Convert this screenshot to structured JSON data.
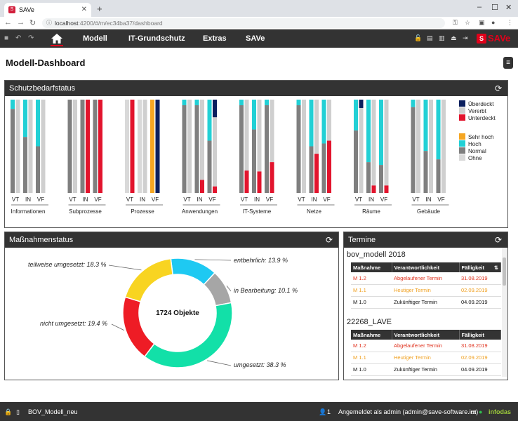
{
  "browser": {
    "tab_title": "SAVe",
    "url_host": "localhost",
    "url_rest": ":4200/#/m/ec34ba37/dashboard"
  },
  "nav": {
    "items": [
      "Modell",
      "IT-Grundschutz",
      "Extras",
      "SAVe"
    ],
    "brand": "SAVe"
  },
  "page": {
    "title": "Modell-Dashboard"
  },
  "schutzbedarf": {
    "title": "Schutzbedarfstatus",
    "columns": [
      "VT",
      "IN",
      "VF"
    ],
    "legend_status": [
      {
        "label": "Überdeckt",
        "color": "#0b1f5e"
      },
      {
        "label": "Vererbt",
        "color": "#cfcfcf"
      },
      {
        "label": "Unterdeckt",
        "color": "#e2142d"
      }
    ],
    "legend_level": [
      {
        "label": "Sehr hoch",
        "color": "#f5a623"
      },
      {
        "label": "Hoch",
        "color": "#22d0d5"
      },
      {
        "label": "Normal",
        "color": "#7f7f7f"
      },
      {
        "label": "Ohne",
        "color": "#d9d9d9"
      }
    ]
  },
  "chart_data": {
    "type": "bar",
    "title": "Schutzbedarfstatus",
    "unit": "share of objects (0-1)",
    "groups": [
      {
        "name": "Informationen",
        "bars": [
          {
            "col": "VT",
            "status": [
              {
                "c": "vererbt",
                "v": 1
              }
            ],
            "level": [
              {
                "c": "hoch",
                "v": 0.1
              },
              {
                "c": "normal",
                "v": 0.9
              }
            ]
          },
          {
            "col": "IN",
            "status": [
              {
                "c": "vererbt",
                "v": 1
              }
            ],
            "level": [
              {
                "c": "hoch",
                "v": 0.4
              },
              {
                "c": "normal",
                "v": 0.6
              }
            ]
          },
          {
            "col": "VF",
            "status": [
              {
                "c": "vererbt",
                "v": 1
              }
            ],
            "level": [
              {
                "c": "hoch",
                "v": 0.5
              },
              {
                "c": "normal",
                "v": 0.5
              }
            ]
          }
        ]
      },
      {
        "name": "Subprozesse",
        "bars": [
          {
            "col": "VT",
            "status": [
              {
                "c": "vererbt",
                "v": 1
              }
            ],
            "level": [
              {
                "c": "normal",
                "v": 1
              }
            ]
          },
          {
            "col": "IN",
            "status": [
              {
                "c": "unterdeckt",
                "v": 1
              }
            ],
            "level": [
              {
                "c": "normal",
                "v": 1
              }
            ]
          },
          {
            "col": "VF",
            "status": [
              {
                "c": "unterdeckt",
                "v": 1
              }
            ],
            "level": [
              {
                "c": "normal",
                "v": 1
              }
            ]
          }
        ]
      },
      {
        "name": "Prozesse",
        "bars": [
          {
            "col": "VT",
            "status": [
              {
                "c": "unterdeckt",
                "v": 1
              }
            ],
            "level": [
              {
                "c": "ohne",
                "v": 1
              }
            ]
          },
          {
            "col": "IN",
            "status": [
              {
                "c": "vererbt",
                "v": 1
              }
            ],
            "level": [
              {
                "c": "ohne",
                "v": 1
              }
            ]
          },
          {
            "col": "VF",
            "status": [
              {
                "c": "ueberdeckt",
                "v": 1
              }
            ],
            "level": [
              {
                "c": "sehr_hoch",
                "v": 1
              }
            ]
          }
        ]
      },
      {
        "name": "Anwendungen",
        "bars": [
          {
            "col": "VT",
            "status": [
              {
                "c": "vererbt",
                "v": 1
              }
            ],
            "level": [
              {
                "c": "hoch",
                "v": 0.06
              },
              {
                "c": "normal",
                "v": 0.94
              }
            ]
          },
          {
            "col": "IN",
            "status": [
              {
                "c": "vererbt",
                "v": 0.86
              },
              {
                "c": "unterdeckt",
                "v": 0.14
              }
            ],
            "level": [
              {
                "c": "hoch",
                "v": 0.06
              },
              {
                "c": "normal",
                "v": 0.94
              }
            ]
          },
          {
            "col": "VF",
            "status": [
              {
                "c": "ueberdeckt",
                "v": 0.19
              },
              {
                "c": "vererbt",
                "v": 0.74
              },
              {
                "c": "unterdeckt",
                "v": 0.07
              }
            ],
            "level": [
              {
                "c": "hoch",
                "v": 0.44
              },
              {
                "c": "normal",
                "v": 0.56
              }
            ]
          }
        ]
      },
      {
        "name": "IT-Systeme",
        "bars": [
          {
            "col": "VT",
            "status": [
              {
                "c": "vererbt",
                "v": 0.76
              },
              {
                "c": "unterdeckt",
                "v": 0.24
              }
            ],
            "level": [
              {
                "c": "hoch",
                "v": 0.06
              },
              {
                "c": "normal",
                "v": 0.94
              }
            ]
          },
          {
            "col": "IN",
            "status": [
              {
                "c": "vererbt",
                "v": 0.77
              },
              {
                "c": "unterdeckt",
                "v": 0.23
              }
            ],
            "level": [
              {
                "c": "hoch",
                "v": 0.32
              },
              {
                "c": "normal",
                "v": 0.68
              }
            ]
          },
          {
            "col": "VF",
            "status": [
              {
                "c": "vererbt",
                "v": 0.67
              },
              {
                "c": "unterdeckt",
                "v": 0.33
              }
            ],
            "level": [
              {
                "c": "hoch",
                "v": 0.06
              },
              {
                "c": "normal",
                "v": 0.94
              }
            ]
          }
        ]
      },
      {
        "name": "Netze",
        "bars": [
          {
            "col": "VT",
            "status": [
              {
                "c": "vererbt",
                "v": 1
              }
            ],
            "level": [
              {
                "c": "hoch",
                "v": 0.06
              },
              {
                "c": "normal",
                "v": 0.94
              }
            ]
          },
          {
            "col": "IN",
            "status": [
              {
                "c": "vererbt",
                "v": 0.58
              },
              {
                "c": "unterdeckt",
                "v": 0.42
              }
            ],
            "level": [
              {
                "c": "hoch",
                "v": 0.5
              },
              {
                "c": "normal",
                "v": 0.5
              }
            ]
          },
          {
            "col": "VF",
            "status": [
              {
                "c": "vererbt",
                "v": 0.44
              },
              {
                "c": "unterdeckt",
                "v": 0.56
              }
            ],
            "level": [
              {
                "c": "hoch",
                "v": 0.47
              },
              {
                "c": "normal",
                "v": 0.53
              }
            ]
          }
        ]
      },
      {
        "name": "Räume",
        "bars": [
          {
            "col": "VT",
            "status": [
              {
                "c": "ueberdeckt",
                "v": 0.09
              },
              {
                "c": "vererbt",
                "v": 0.91
              }
            ],
            "level": [
              {
                "c": "hoch",
                "v": 0.33
              },
              {
                "c": "normal",
                "v": 0.67
              }
            ]
          },
          {
            "col": "IN",
            "status": [
              {
                "c": "vererbt",
                "v": 0.92
              },
              {
                "c": "unterdeckt",
                "v": 0.08
              }
            ],
            "level": [
              {
                "c": "hoch",
                "v": 0.67
              },
              {
                "c": "normal",
                "v": 0.33
              }
            ]
          },
          {
            "col": "VF",
            "status": [
              {
                "c": "vererbt",
                "v": 0.92
              },
              {
                "c": "unterdeckt",
                "v": 0.08
              }
            ],
            "level": [
              {
                "c": "hoch",
                "v": 0.7
              },
              {
                "c": "normal",
                "v": 0.3
              }
            ]
          }
        ]
      },
      {
        "name": "Gebäude",
        "bars": [
          {
            "col": "VT",
            "status": [
              {
                "c": "vererbt",
                "v": 1
              }
            ],
            "level": [
              {
                "c": "hoch",
                "v": 0.08
              },
              {
                "c": "normal",
                "v": 0.92
              }
            ]
          },
          {
            "col": "IN",
            "status": [
              {
                "c": "vererbt",
                "v": 1
              }
            ],
            "level": [
              {
                "c": "hoch",
                "v": 0.55
              },
              {
                "c": "normal",
                "v": 0.45
              }
            ]
          },
          {
            "col": "VF",
            "status": [
              {
                "c": "vererbt",
                "v": 1
              }
            ],
            "level": [
              {
                "c": "hoch",
                "v": 0.64
              },
              {
                "c": "normal",
                "v": 0.36
              }
            ]
          }
        ]
      }
    ]
  },
  "massnahmen": {
    "title": "Maßnahmenstatus",
    "total_label": "1724 Objekte",
    "donut": {
      "type": "pie",
      "slices": [
        {
          "label": "entbehrlich: 13.9 %",
          "value": 13.9,
          "color": "#1ec9f2"
        },
        {
          "label": "in Bearbeitung: 10.1 %",
          "value": 10.1,
          "color": "#a6a6a6"
        },
        {
          "label": "umgesetzt: 38.3 %",
          "value": 38.3,
          "color": "#12e0a8"
        },
        {
          "label": "nicht umgesetzt: 19.4 %",
          "value": 19.4,
          "color": "#ee1c25"
        },
        {
          "label": "teilweise umgesetzt: 18.3 %",
          "value": 18.3,
          "color": "#f8d421"
        }
      ]
    }
  },
  "termine": {
    "title": "Termine",
    "headers": [
      "Maßnahme",
      "Verantwortlichkeit",
      "Fälligkeit"
    ],
    "projects": [
      {
        "name": "bov_modell 2018",
        "rows": [
          {
            "m": "M 1.2",
            "v": "Abgelaufener Termin",
            "f": "31.08.2019",
            "color": "#e0321e"
          },
          {
            "m": "M 1.1",
            "v": "Heutiger Termin",
            "f": "02.09.2019",
            "color": "#f0a020"
          },
          {
            "m": "M 1.0",
            "v": "Zukünftiger Termin",
            "f": "04.09.2019",
            "color": "#222222"
          }
        ]
      },
      {
        "name": "22268_LAVE",
        "rows": [
          {
            "m": "M 1.2",
            "v": "Abgelaufener Termin",
            "f": "31.08.2019",
            "color": "#e0321e"
          },
          {
            "m": "M 1.1",
            "v": "Heutiger Termin",
            "f": "02.09.2019",
            "color": "#f0a020"
          },
          {
            "m": "M 1.0",
            "v": "Zukünftiger Termin",
            "f": "04.09.2019",
            "color": "#222222"
          }
        ]
      }
    ]
  },
  "status": {
    "model": "BOV_Modell_neu",
    "users": "1",
    "login": "Angemeldet als admin (admin@save-software.int)",
    "vendor": "infodas"
  }
}
